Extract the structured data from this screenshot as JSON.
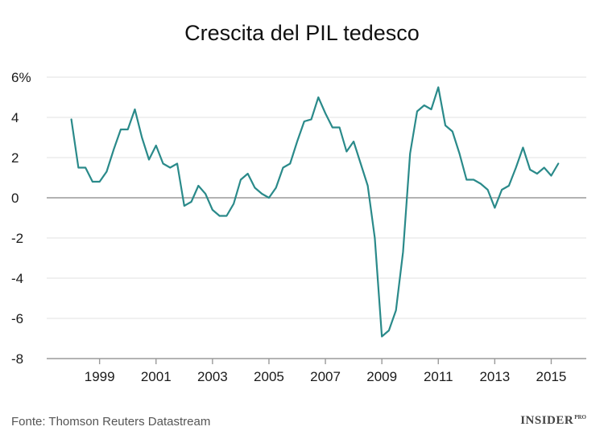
{
  "chart_data": {
    "type": "line",
    "title": "Crescita del PIL tedesco",
    "xlabel": "",
    "ylabel": "",
    "unit": "%",
    "ylim": [
      -8,
      6
    ],
    "xlim": [
      1998,
      2015.7
    ],
    "y_ticks": [
      {
        "value": 6,
        "label": "6%"
      },
      {
        "value": 4,
        "label": "4"
      },
      {
        "value": 2,
        "label": "2"
      },
      {
        "value": 0,
        "label": "0"
      },
      {
        "value": -2,
        "label": "-2"
      },
      {
        "value": -4,
        "label": "-4"
      },
      {
        "value": -6,
        "label": "-6"
      },
      {
        "value": -8,
        "label": "-8"
      }
    ],
    "x_ticks": [
      {
        "value": 1999,
        "label": "1999"
      },
      {
        "value": 2001,
        "label": "2001"
      },
      {
        "value": 2003,
        "label": "2003"
      },
      {
        "value": 2005,
        "label": "2005"
      },
      {
        "value": 2007,
        "label": "2007"
      },
      {
        "value": 2009,
        "label": "2009"
      },
      {
        "value": 2011,
        "label": "2011"
      },
      {
        "value": 2013,
        "label": "2013"
      },
      {
        "value": 2015,
        "label": "2015"
      }
    ],
    "grid": true,
    "line_color": "#2a8a8a",
    "series": [
      {
        "name": "Crescita del PIL tedesco",
        "x": [
          1998.0,
          1998.25,
          1998.5,
          1998.75,
          1999.0,
          1999.25,
          1999.5,
          1999.75,
          2000.0,
          2000.25,
          2000.5,
          2000.75,
          2001.0,
          2001.25,
          2001.5,
          2001.75,
          2002.0,
          2002.25,
          2002.5,
          2002.75,
          2003.0,
          2003.25,
          2003.5,
          2003.75,
          2004.0,
          2004.25,
          2004.5,
          2004.75,
          2005.0,
          2005.25,
          2005.5,
          2005.75,
          2006.0,
          2006.25,
          2006.5,
          2006.75,
          2007.0,
          2007.25,
          2007.5,
          2007.75,
          2008.0,
          2008.25,
          2008.5,
          2008.75,
          2009.0,
          2009.25,
          2009.5,
          2009.75,
          2010.0,
          2010.25,
          2010.5,
          2010.75,
          2011.0,
          2011.25,
          2011.5,
          2011.75,
          2012.0,
          2012.25,
          2012.5,
          2012.75,
          2013.0,
          2013.25,
          2013.5,
          2013.75,
          2014.0,
          2014.25,
          2014.5,
          2014.75,
          2015.0,
          2015.25
        ],
        "values": [
          3.9,
          1.5,
          1.5,
          0.8,
          0.8,
          1.3,
          2.4,
          3.4,
          3.4,
          4.4,
          3.0,
          1.9,
          2.6,
          1.7,
          1.5,
          1.7,
          -0.4,
          -0.2,
          0.6,
          0.2,
          -0.6,
          -0.9,
          -0.9,
          -0.3,
          0.9,
          1.2,
          0.5,
          0.2,
          0.0,
          0.5,
          1.5,
          1.7,
          2.8,
          3.8,
          3.9,
          5.0,
          4.2,
          3.5,
          3.5,
          2.3,
          2.8,
          1.7,
          0.6,
          -2.0,
          -6.9,
          -6.6,
          -5.6,
          -2.7,
          2.2,
          4.3,
          4.6,
          4.4,
          5.5,
          3.6,
          3.3,
          2.2,
          0.9,
          0.9,
          0.7,
          0.4,
          -0.5,
          0.4,
          0.6,
          1.5,
          2.5,
          1.4,
          1.2,
          1.5,
          1.1,
          1.7
        ]
      }
    ]
  },
  "footer": {
    "source": "Fonte: Thomson Reuters Datastream",
    "brand": "INSIDER",
    "brand_sup": "PRO"
  }
}
